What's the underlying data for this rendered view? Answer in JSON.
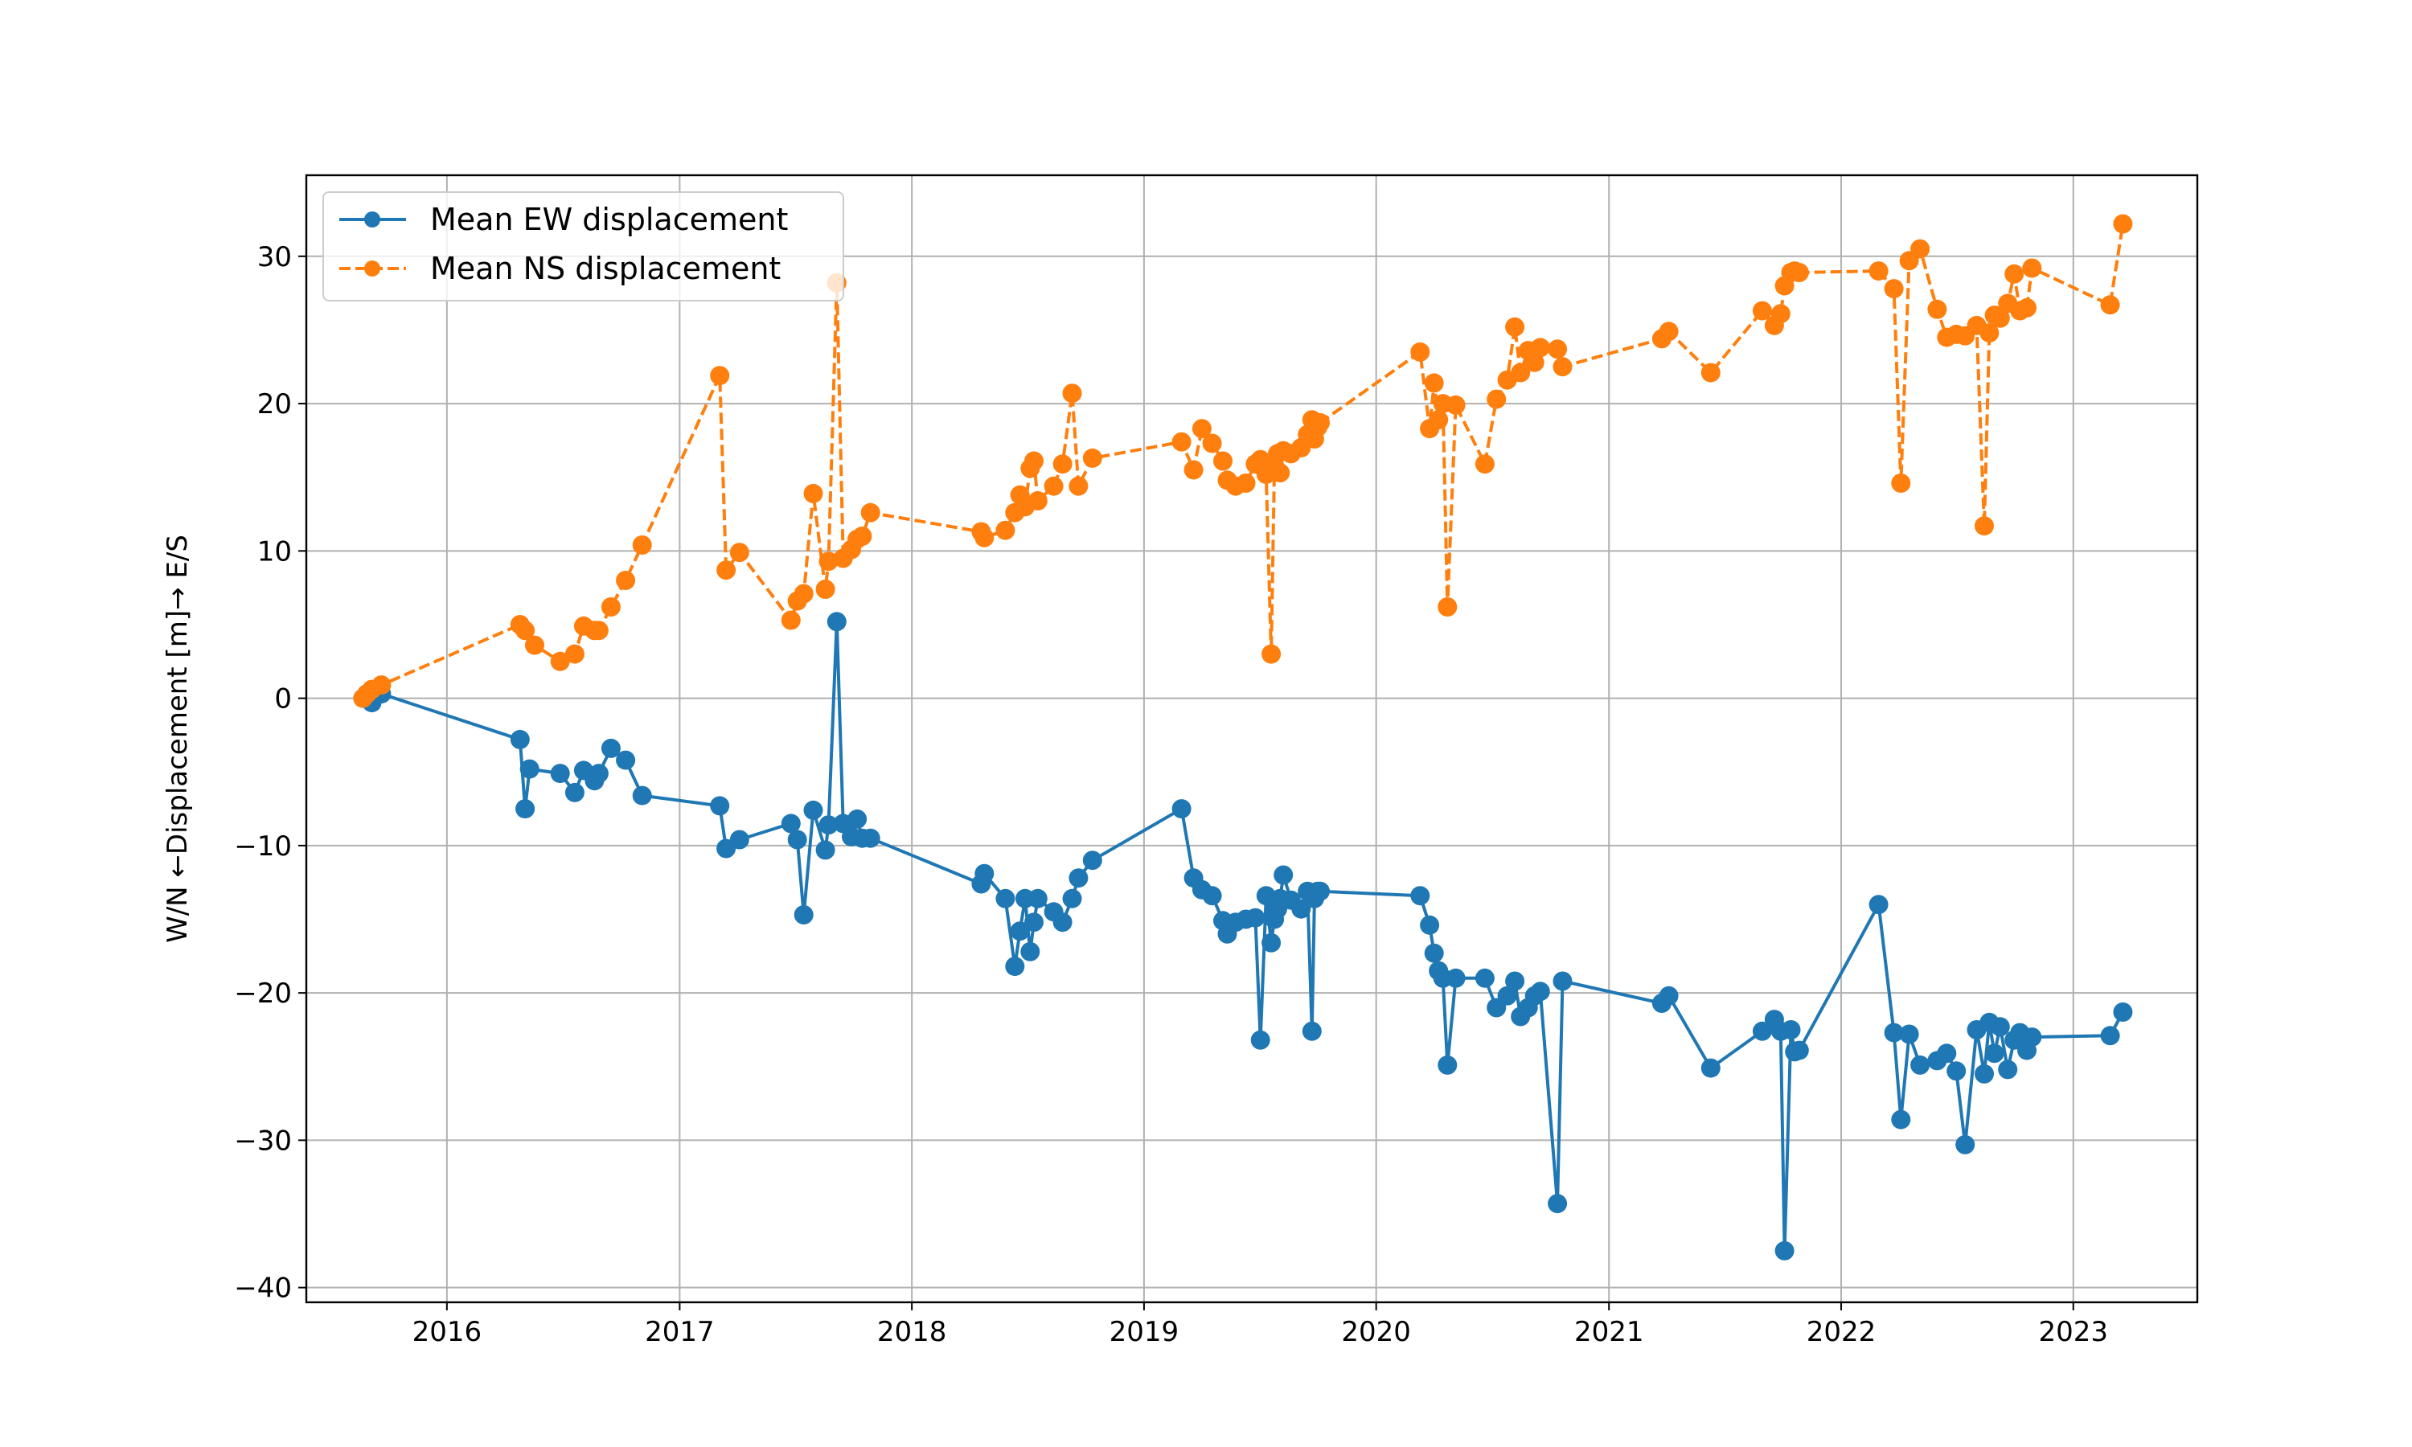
{
  "chart_data": {
    "type": "line",
    "title": "",
    "xlabel": "",
    "ylabel": "W/N ←Displacement [m]→ E/S",
    "xlim": [
      "2015-05-25",
      "2023-07-15"
    ],
    "ylim": [
      -41,
      35.5
    ],
    "grid": true,
    "legend_position": "top-left",
    "x_ticks": [
      "2016-01-01",
      "2017-01-01",
      "2018-01-01",
      "2019-01-01",
      "2020-01-01",
      "2021-01-01",
      "2022-01-01",
      "2023-01-01"
    ],
    "x_tick_labels": [
      "2016",
      "2017",
      "2018",
      "2019",
      "2020",
      "2021",
      "2022",
      "2023"
    ],
    "y_ticks": [
      -40,
      -30,
      -20,
      -10,
      0,
      10,
      20,
      30
    ],
    "y_tick_labels": [
      "−40",
      "−30",
      "−20",
      "−10",
      "0",
      "10",
      "20",
      "30"
    ],
    "series": [
      {
        "name": "Mean EW displacement",
        "color": "#1f77b4",
        "line_style": "solid",
        "marker": "circle",
        "x": [
          "2015-08-22",
          "2015-08-28",
          "2015-09-05",
          "2015-09-20",
          "2016-04-25",
          "2016-05-03",
          "2016-05-10",
          "2016-06-27",
          "2016-07-20",
          "2016-08-03",
          "2016-08-20",
          "2016-08-27",
          "2016-09-15",
          "2016-10-08",
          "2016-11-03",
          "2017-03-05",
          "2017-03-15",
          "2017-04-05",
          "2017-06-25",
          "2017-07-05",
          "2017-07-15",
          "2017-07-30",
          "2017-08-18",
          "2017-08-23",
          "2017-09-05",
          "2017-09-15",
          "2017-09-28",
          "2017-10-07",
          "2017-10-15",
          "2017-10-28",
          "2018-04-20",
          "2018-04-25",
          "2018-05-28",
          "2018-06-12",
          "2018-06-20",
          "2018-06-28",
          "2018-07-06",
          "2018-07-12",
          "2018-07-18",
          "2018-08-12",
          "2018-08-26",
          "2018-09-10",
          "2018-09-20",
          "2018-10-12",
          "2019-03-01",
          "2019-03-20",
          "2019-04-02",
          "2019-04-18",
          "2019-05-05",
          "2019-05-12",
          "2019-05-25",
          "2019-06-10",
          "2019-06-25",
          "2019-07-03",
          "2019-07-12",
          "2019-07-20",
          "2019-07-25",
          "2019-07-30",
          "2019-08-03",
          "2019-08-08",
          "2019-08-20",
          "2019-09-05",
          "2019-09-15",
          "2019-09-22",
          "2019-09-26",
          "2019-10-01",
          "2019-10-05",
          "2020-03-10",
          "2020-03-25",
          "2020-04-01",
          "2020-04-08",
          "2020-04-15",
          "2020-04-22",
          "2020-05-05",
          "2020-06-20",
          "2020-07-08",
          "2020-07-25",
          "2020-08-06",
          "2020-08-15",
          "2020-08-27",
          "2020-09-06",
          "2020-09-15",
          "2020-10-12",
          "2020-10-20",
          "2021-03-25",
          "2021-04-05",
          "2021-06-10",
          "2021-08-30",
          "2021-09-18",
          "2021-09-28",
          "2021-10-04",
          "2021-10-14",
          "2021-10-20",
          "2021-10-27",
          "2022-03-01",
          "2022-03-25",
          "2022-04-05",
          "2022-04-18",
          "2022-05-05",
          "2022-06-01",
          "2022-06-16",
          "2022-07-01",
          "2022-07-15",
          "2022-08-02",
          "2022-08-14",
          "2022-08-22",
          "2022-08-30",
          "2022-09-08",
          "2022-09-20",
          "2022-09-30",
          "2022-10-09",
          "2022-10-20",
          "2022-10-28",
          "2023-02-28",
          "2023-03-20"
        ],
        "y": [
          0,
          0,
          -0.3,
          0.3,
          -2.8,
          -7.5,
          -4.8,
          -5.1,
          -6.4,
          -4.9,
          -5.6,
          -5.1,
          -3.4,
          -4.2,
          -6.6,
          -7.3,
          -10.2,
          -9.6,
          -8.5,
          -9.6,
          -14.7,
          -7.6,
          -10.3,
          -8.6,
          5.2,
          -8.5,
          -9.4,
          -8.2,
          -9.5,
          -9.5,
          -12.6,
          -11.9,
          -13.6,
          -18.2,
          -15.8,
          -13.6,
          -17.2,
          -15.2,
          -13.6,
          -14.5,
          -15.2,
          -13.6,
          -12.2,
          -11.0,
          -7.5,
          -12.2,
          -13.0,
          -13.4,
          -15.1,
          -16.0,
          -15.2,
          -15.0,
          -14.9,
          -23.2,
          -13.4,
          -16.6,
          -15.0,
          -14.3,
          -13.6,
          -12.0,
          -13.7,
          -14.3,
          -13.1,
          -22.6,
          -13.6,
          -13.1,
          -13.1,
          -13.4,
          -15.4,
          -17.3,
          -18.5,
          -19.0,
          -24.9,
          -19.0,
          -19.0,
          -21.0,
          -20.2,
          -19.2,
          -21.6,
          -21.0,
          -20.2,
          -19.9,
          -34.3,
          -19.2,
          -20.7,
          -20.2,
          -25.1,
          -22.6,
          -21.8,
          -22.6,
          -37.5,
          -22.5,
          -24.0,
          -23.9,
          -14.0,
          -22.7,
          -28.6,
          -22.8,
          -24.9,
          -24.6,
          -24.1,
          -25.3,
          -30.3,
          -22.5,
          -25.5,
          -22.0,
          -24.1,
          -22.3,
          -25.2,
          -23.2,
          -22.7,
          -23.9,
          -23.0,
          -22.9,
          -21.3
        ]
      },
      {
        "name": "Mean NS displacement",
        "color": "#ff7f0e",
        "line_style": "dashed",
        "marker": "circle",
        "x": [
          "2015-08-22",
          "2015-08-28",
          "2015-09-05",
          "2015-09-20",
          "2016-04-25",
          "2016-05-03",
          "2016-05-18",
          "2016-06-27",
          "2016-07-20",
          "2016-08-03",
          "2016-08-20",
          "2016-08-27",
          "2016-09-15",
          "2016-10-08",
          "2016-11-03",
          "2017-03-05",
          "2017-03-15",
          "2017-04-05",
          "2017-06-25",
          "2017-07-05",
          "2017-07-15",
          "2017-07-30",
          "2017-08-18",
          "2017-08-23",
          "2017-09-05",
          "2017-09-15",
          "2017-09-28",
          "2017-10-07",
          "2017-10-15",
          "2017-10-28",
          "2018-04-20",
          "2018-04-25",
          "2018-05-28",
          "2018-06-12",
          "2018-06-20",
          "2018-06-28",
          "2018-07-06",
          "2018-07-12",
          "2018-07-18",
          "2018-08-12",
          "2018-08-26",
          "2018-09-10",
          "2018-09-20",
          "2018-10-12",
          "2019-03-01",
          "2019-03-20",
          "2019-04-02",
          "2019-04-18",
          "2019-05-05",
          "2019-05-12",
          "2019-05-25",
          "2019-06-10",
          "2019-06-25",
          "2019-07-03",
          "2019-07-12",
          "2019-07-20",
          "2019-07-25",
          "2019-07-30",
          "2019-08-03",
          "2019-08-08",
          "2019-08-20",
          "2019-09-05",
          "2019-09-15",
          "2019-09-22",
          "2019-09-26",
          "2019-10-01",
          "2019-10-05",
          "2020-03-10",
          "2020-03-25",
          "2020-04-01",
          "2020-04-08",
          "2020-04-15",
          "2020-04-22",
          "2020-05-05",
          "2020-06-20",
          "2020-07-08",
          "2020-07-25",
          "2020-08-06",
          "2020-08-15",
          "2020-08-27",
          "2020-09-06",
          "2020-09-15",
          "2020-10-12",
          "2020-10-20",
          "2021-03-25",
          "2021-04-05",
          "2021-06-10",
          "2021-08-30",
          "2021-09-18",
          "2021-09-28",
          "2021-10-04",
          "2021-10-14",
          "2021-10-20",
          "2021-10-27",
          "2022-03-01",
          "2022-03-25",
          "2022-04-05",
          "2022-04-18",
          "2022-05-05",
          "2022-06-01",
          "2022-06-16",
          "2022-07-01",
          "2022-07-15",
          "2022-08-02",
          "2022-08-14",
          "2022-08-22",
          "2022-08-30",
          "2022-09-08",
          "2022-09-20",
          "2022-09-30",
          "2022-10-09",
          "2022-10-20",
          "2022-10-28",
          "2023-02-28",
          "2023-03-20"
        ],
        "y": [
          0,
          0.3,
          0.6,
          0.9,
          5.0,
          4.6,
          3.6,
          2.5,
          3.0,
          4.9,
          4.6,
          4.6,
          6.2,
          8.0,
          10.4,
          21.9,
          8.7,
          9.9,
          5.3,
          6.6,
          7.1,
          13.9,
          7.4,
          9.3,
          28.2,
          9.5,
          10.1,
          10.8,
          11.0,
          12.6,
          11.3,
          10.9,
          11.4,
          12.6,
          13.8,
          13.0,
          15.6,
          16.1,
          13.4,
          14.4,
          15.9,
          20.7,
          14.4,
          16.3,
          17.4,
          15.5,
          18.3,
          17.3,
          16.1,
          14.8,
          14.4,
          14.6,
          15.9,
          16.2,
          15.2,
          3.0,
          15.8,
          16.6,
          15.3,
          16.8,
          16.6,
          17.0,
          17.9,
          18.9,
          17.6,
          18.4,
          18.7,
          23.5,
          18.3,
          21.4,
          18.9,
          20.0,
          6.2,
          19.9,
          15.9,
          20.3,
          21.6,
          25.2,
          22.1,
          23.6,
          22.8,
          23.8,
          23.7,
          22.5,
          24.4,
          24.9,
          22.1,
          26.3,
          25.3,
          26.1,
          28.0,
          28.9,
          29.0,
          28.9,
          29.0,
          27.8,
          14.6,
          29.7,
          30.5,
          26.4,
          24.5,
          24.7,
          24.6,
          25.3,
          11.7,
          24.8,
          26.0,
          25.8,
          26.8,
          28.8,
          26.3,
          26.5,
          29.2,
          26.7,
          32.2
        ]
      }
    ]
  }
}
